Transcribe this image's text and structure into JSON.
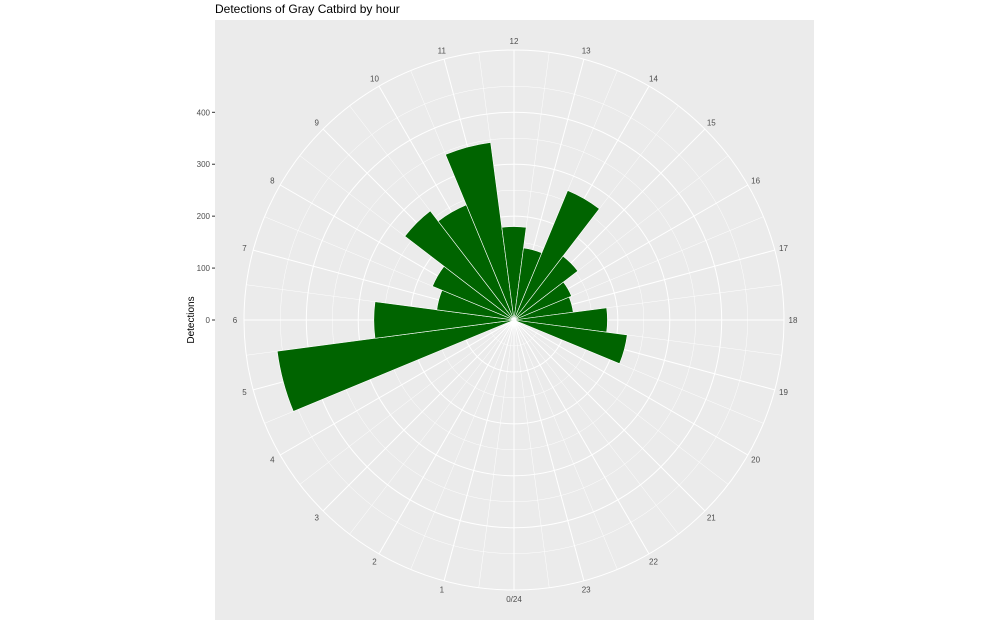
{
  "chart_data": {
    "type": "bar",
    "coord": "polar",
    "title": "Detections of Gray Catbird by hour",
    "xlabel": "",
    "ylabel": "Detections",
    "categories": [
      "0/24",
      "1",
      "2",
      "3",
      "4",
      "5",
      "6",
      "7",
      "8",
      "9",
      "10",
      "11",
      "12",
      "13",
      "14",
      "15",
      "16",
      "17",
      "18",
      "19",
      "20",
      "21",
      "22",
      "23"
    ],
    "values": [
      0,
      0,
      0,
      0,
      0,
      460,
      270,
      150,
      170,
      265,
      240,
      345,
      180,
      140,
      270,
      155,
      120,
      115,
      180,
      220,
      0,
      0,
      0,
      0
    ],
    "y_ticks": [
      0,
      100,
      200,
      300,
      400
    ],
    "ylim": [
      0,
      520
    ],
    "grid": true,
    "bar_color": "#006400",
    "panel_color": "#EBEBEB",
    "grid_color": "#FFFFFF",
    "legend": "none"
  }
}
